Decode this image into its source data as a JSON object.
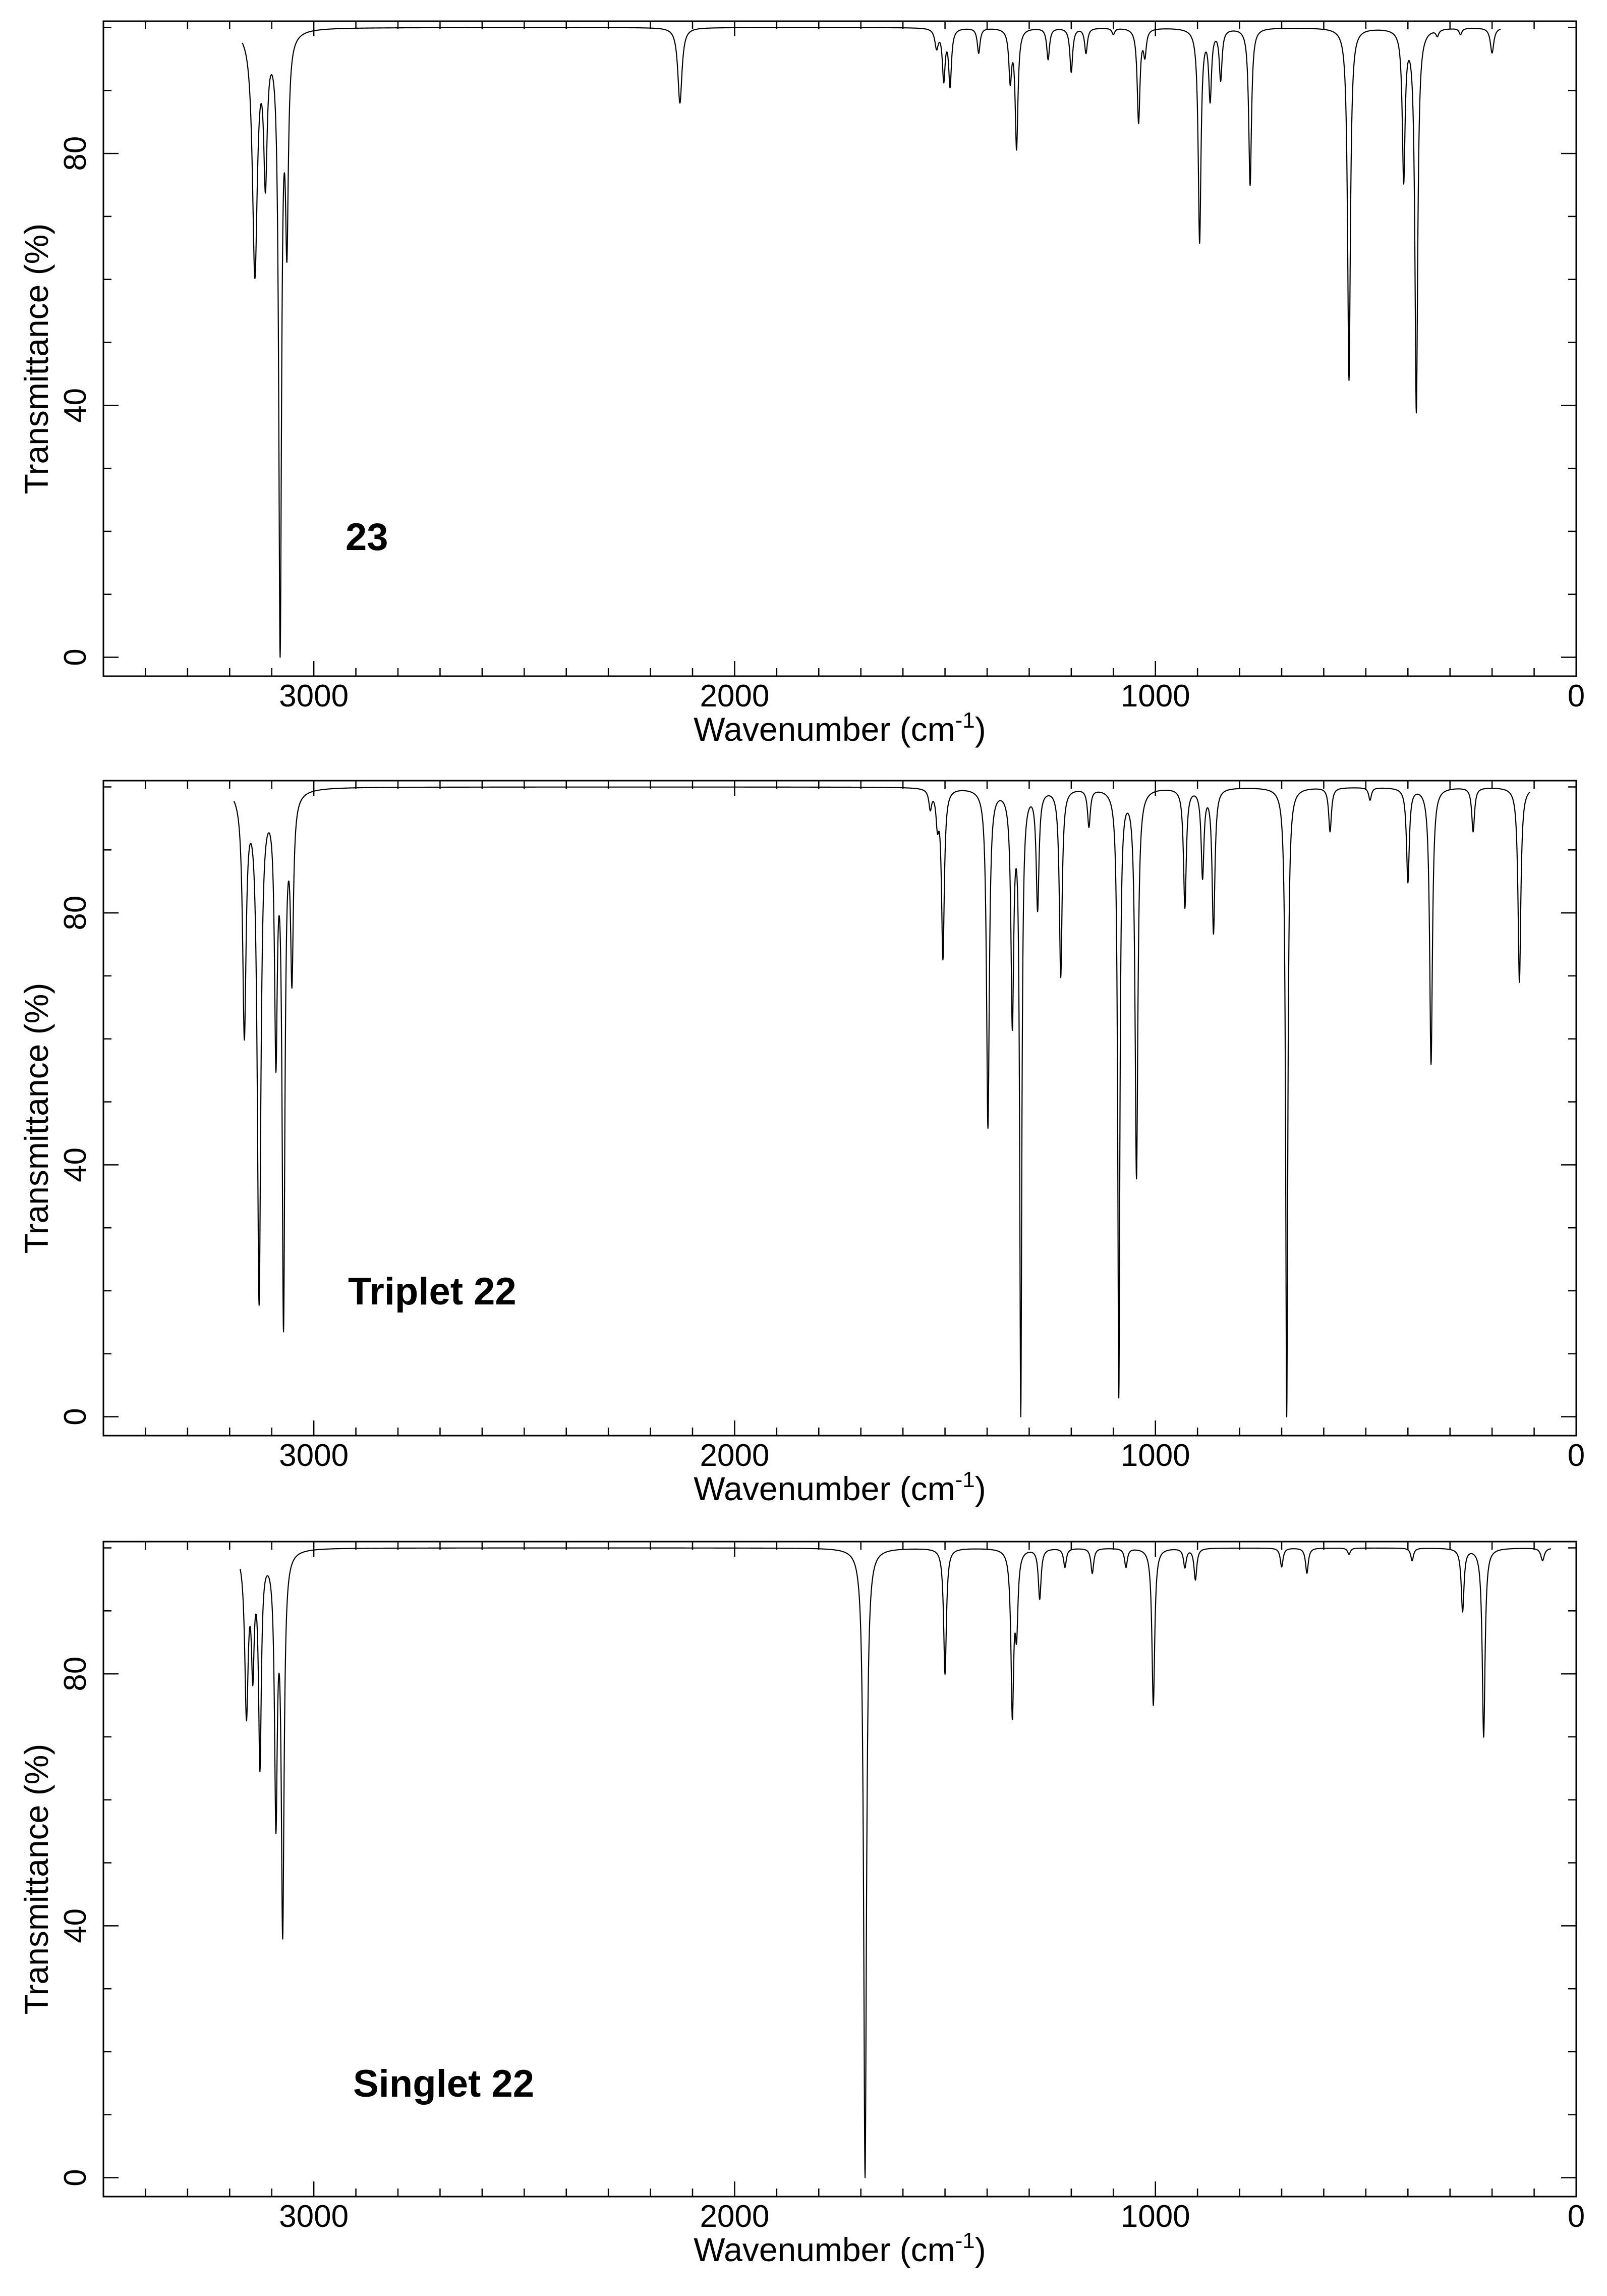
{
  "chart_data": [
    {
      "type": "line",
      "label": "23",
      "xlabel": "Wavenumber (cm",
      "xlabel_sup": "-1",
      "xlabel_end": ")",
      "ylabel": "Transmittance (%)",
      "xlim": [
        3500,
        0
      ],
      "ylim": [
        -3,
        101
      ],
      "x_ticks": [
        3000,
        2000,
        1000,
        0
      ],
      "y_ticks": [
        0,
        40,
        80
      ],
      "series": [
        {
          "peaks": [
            {
              "x": 3140,
              "y": 61,
              "w": 7
            },
            {
              "x": 3115,
              "y": 77,
              "w": 5
            },
            {
              "x": 3080,
              "y": 0,
              "w": 4
            },
            {
              "x": 3064,
              "y": 67,
              "w": 4
            },
            {
              "x": 2130,
              "y": 88,
              "w": 6
            },
            {
              "x": 1520,
              "y": 97,
              "w": 5
            },
            {
              "x": 1503,
              "y": 92,
              "w": 4
            },
            {
              "x": 1488,
              "y": 91,
              "w": 4
            },
            {
              "x": 1420,
              "y": 96,
              "w": 4
            },
            {
              "x": 1345,
              "y": 92,
              "w": 4
            },
            {
              "x": 1330,
              "y": 81,
              "w": 4
            },
            {
              "x": 1255,
              "y": 95,
              "w": 4
            },
            {
              "x": 1200,
              "y": 93,
              "w": 4
            },
            {
              "x": 1165,
              "y": 96,
              "w": 4
            },
            {
              "x": 1100,
              "y": 99,
              "w": 4
            },
            {
              "x": 1040,
              "y": 85,
              "w": 4
            },
            {
              "x": 1025,
              "y": 96,
              "w": 4
            },
            {
              "x": 895,
              "y": 66,
              "w": 4
            },
            {
              "x": 870,
              "y": 89,
              "w": 4
            },
            {
              "x": 845,
              "y": 92,
              "w": 4
            },
            {
              "x": 775,
              "y": 75,
              "w": 4
            },
            {
              "x": 540,
              "y": 44,
              "w": 4
            },
            {
              "x": 410,
              "y": 76,
              "w": 4
            },
            {
              "x": 380,
              "y": 39,
              "w": 4
            },
            {
              "x": 330,
              "y": 99,
              "w": 4
            },
            {
              "x": 275,
              "y": 99,
              "w": 4
            },
            {
              "x": 200,
              "y": 96,
              "w": 5
            }
          ],
          "x_start": 3170,
          "x_end": 180
        }
      ]
    },
    {
      "type": "line",
      "label": "Triplet 22",
      "xlabel": "Wavenumber (cm",
      "xlabel_sup": "-1",
      "xlabel_end": ")",
      "ylabel": "Transmittance (%)",
      "xlim": [
        3500,
        0
      ],
      "ylim": [
        -3,
        101
      ],
      "x_ticks": [
        3000,
        2000,
        1000,
        0
      ],
      "y_ticks": [
        0,
        40,
        80
      ],
      "series": [
        {
          "peaks": [
            {
              "x": 3165,
              "y": 61,
              "w": 5
            },
            {
              "x": 3130,
              "y": 18,
              "w": 5
            },
            {
              "x": 3090,
              "y": 58,
              "w": 4
            },
            {
              "x": 3072,
              "y": 14,
              "w": 4
            },
            {
              "x": 3052,
              "y": 71,
              "w": 4
            },
            {
              "x": 1535,
              "y": 97,
              "w": 4
            },
            {
              "x": 1518,
              "y": 95,
              "w": 4
            },
            {
              "x": 1505,
              "y": 73,
              "w": 4
            },
            {
              "x": 1398,
              "y": 46,
              "w": 4
            },
            {
              "x": 1340,
              "y": 63,
              "w": 4
            },
            {
              "x": 1320,
              "y": 0,
              "w": 3
            },
            {
              "x": 1280,
              "y": 81,
              "w": 4
            },
            {
              "x": 1225,
              "y": 70,
              "w": 4
            },
            {
              "x": 1158,
              "y": 94,
              "w": 4
            },
            {
              "x": 1087,
              "y": 3,
              "w": 3
            },
            {
              "x": 1045,
              "y": 38,
              "w": 4
            },
            {
              "x": 930,
              "y": 81,
              "w": 4
            },
            {
              "x": 888,
              "y": 86,
              "w": 4
            },
            {
              "x": 862,
              "y": 77,
              "w": 4
            },
            {
              "x": 688,
              "y": 0,
              "w": 3
            },
            {
              "x": 585,
              "y": 93,
              "w": 4
            },
            {
              "x": 490,
              "y": 98,
              "w": 4
            },
            {
              "x": 400,
              "y": 85,
              "w": 4
            },
            {
              "x": 345,
              "y": 56,
              "w": 4
            },
            {
              "x": 245,
              "y": 93,
              "w": 4
            },
            {
              "x": 135,
              "y": 69,
              "w": 4
            }
          ],
          "x_start": 3190,
          "x_end": 110
        }
      ]
    },
    {
      "type": "line",
      "label": "Singlet 22",
      "xlabel": "Wavenumber (cm",
      "xlabel_sup": "-1",
      "xlabel_end": ")",
      "ylabel": "Transmittance (%)",
      "xlim": [
        3500,
        0
      ],
      "ylim": [
        -3,
        101
      ],
      "x_ticks": [
        3000,
        2000,
        1000,
        0
      ],
      "y_ticks": [
        0,
        40,
        80
      ],
      "series": [
        {
          "peaks": [
            {
              "x": 3160,
              "y": 74,
              "w": 5
            },
            {
              "x": 3145,
              "y": 82,
              "w": 4
            },
            {
              "x": 3128,
              "y": 66,
              "w": 4
            },
            {
              "x": 3090,
              "y": 57,
              "w": 4
            },
            {
              "x": 3074,
              "y": 39,
              "w": 4
            },
            {
              "x": 1690,
              "y": 0,
              "w": 4
            },
            {
              "x": 1500,
              "y": 80,
              "w": 4
            },
            {
              "x": 1340,
              "y": 74,
              "w": 4
            },
            {
              "x": 1330,
              "y": 88,
              "w": 4
            },
            {
              "x": 1275,
              "y": 92,
              "w": 4
            },
            {
              "x": 1215,
              "y": 97,
              "w": 4
            },
            {
              "x": 1150,
              "y": 96,
              "w": 4
            },
            {
              "x": 1070,
              "y": 97,
              "w": 4
            },
            {
              "x": 1005,
              "y": 75,
              "w": 4
            },
            {
              "x": 930,
              "y": 97,
              "w": 4
            },
            {
              "x": 905,
              "y": 95,
              "w": 4
            },
            {
              "x": 700,
              "y": 97,
              "w": 4
            },
            {
              "x": 640,
              "y": 96,
              "w": 4
            },
            {
              "x": 540,
              "y": 99,
              "w": 4
            },
            {
              "x": 390,
              "y": 98,
              "w": 4
            },
            {
              "x": 270,
              "y": 90,
              "w": 4
            },
            {
              "x": 220,
              "y": 70,
              "w": 4
            },
            {
              "x": 80,
              "y": 98,
              "w": 5
            }
          ],
          "x_start": 3175,
          "x_end": 60
        }
      ]
    }
  ]
}
